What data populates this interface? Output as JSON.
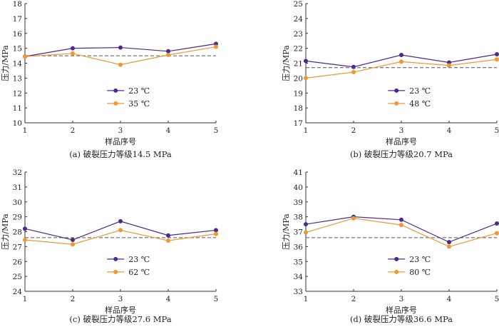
{
  "colors": {
    "series_a": "#4b2a8c",
    "series_b": "#f2962f",
    "reference": "#555555",
    "axis": "#333333"
  },
  "chart_data": [
    {
      "type": "line",
      "caption": "(a) 破裂压力等级14.5 MPa",
      "xlabel": "样品序号",
      "ylabel": "压力/MPa",
      "x": [
        1,
        2,
        3,
        4,
        5
      ],
      "xlim": [
        1,
        5
      ],
      "ylim": [
        10,
        18
      ],
      "yticks": [
        10,
        11,
        12,
        13,
        14,
        15,
        16,
        17,
        18
      ],
      "reference_line": 14.5,
      "legend_position": "center",
      "series": [
        {
          "name": "23 ℃",
          "values": [
            14.45,
            15.0,
            15.05,
            14.8,
            15.3
          ]
        },
        {
          "name": "35 ℃",
          "values": [
            14.45,
            14.65,
            13.9,
            14.55,
            15.1
          ]
        }
      ]
    },
    {
      "type": "line",
      "caption": "(b) 破裂压力等级20.7 MPa",
      "xlabel": "样品序号",
      "ylabel": "压力/MPa",
      "x": [
        1,
        2,
        3,
        4,
        5
      ],
      "xlim": [
        1,
        5
      ],
      "ylim": [
        17,
        25
      ],
      "yticks": [
        17,
        18,
        19,
        20,
        21,
        22,
        23,
        24,
        25
      ],
      "reference_line": 20.7,
      "legend_position": "center",
      "series": [
        {
          "name": "23 ℃",
          "values": [
            21.15,
            20.75,
            21.55,
            21.05,
            21.6
          ]
        },
        {
          "name": "48 ℃",
          "values": [
            20.0,
            20.4,
            21.1,
            20.85,
            21.25
          ]
        }
      ]
    },
    {
      "type": "line",
      "caption": "(c) 破裂压力等级27.6 MPa",
      "xlabel": "样品序号",
      "ylabel": "压力/MPa",
      "x": [
        1,
        2,
        3,
        4,
        5
      ],
      "xlim": [
        1,
        5
      ],
      "ylim": [
        24,
        32
      ],
      "yticks": [
        24,
        25,
        26,
        27,
        28,
        29,
        30,
        31,
        32
      ],
      "reference_line": 27.6,
      "legend_position": "center",
      "series": [
        {
          "name": "23 ℃",
          "values": [
            28.2,
            27.45,
            28.7,
            27.75,
            28.1
          ]
        },
        {
          "name": "62 ℃",
          "values": [
            27.45,
            27.15,
            28.1,
            27.4,
            27.85
          ]
        }
      ]
    },
    {
      "type": "line",
      "caption": "(d) 破裂压力等级36.6 MPa",
      "xlabel": "样品序号",
      "ylabel": "压力/MPa",
      "x": [
        1,
        2,
        3,
        4,
        5
      ],
      "xlim": [
        1,
        5
      ],
      "ylim": [
        33,
        41
      ],
      "yticks": [
        33,
        34,
        35,
        36,
        37,
        38,
        39,
        40,
        41
      ],
      "reference_line": 36.6,
      "legend_position": "center",
      "series": [
        {
          "name": "23 ℃",
          "values": [
            37.5,
            38.0,
            37.8,
            36.3,
            37.55
          ]
        },
        {
          "name": "80 ℃",
          "values": [
            36.95,
            37.9,
            37.45,
            36.0,
            36.9
          ]
        }
      ]
    }
  ]
}
